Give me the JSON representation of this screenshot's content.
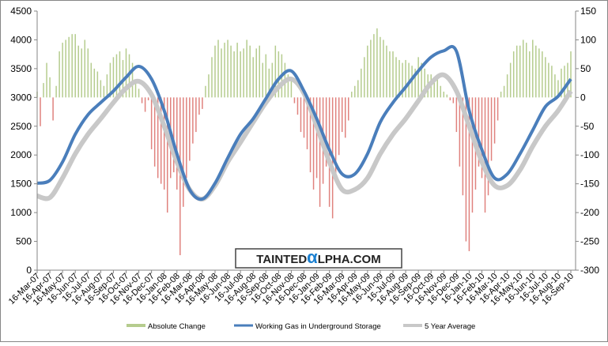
{
  "chart_data": {
    "type": "bar+line",
    "title": "",
    "categories": [
      "16-Mar-07",
      "16-Apr-07",
      "16-May-07",
      "16-Jun-07",
      "16-Jul-07",
      "16-Aug-07",
      "16-Sep-07",
      "16-Oct-07",
      "16-Nov-07",
      "16-Dec-07",
      "16-Jan-08",
      "16-Feb-08",
      "16-Mar-08",
      "16-Apr-08",
      "16-May-08",
      "16-Jun-08",
      "16-Jul-08",
      "16-Aug-08",
      "16-Sep-08",
      "16-Oct-08",
      "16-Nov-08",
      "16-Dec-08",
      "16-Jan-09",
      "16-Feb-09",
      "16-Mar-09",
      "16-Apr-09",
      "16-May-09",
      "16-Jun-09",
      "16-Jul-09",
      "16-Aug-09",
      "16-Sep-09",
      "16-Oct-09",
      "16-Nov-09",
      "16-Dec-09",
      "16-Jan-10",
      "16-Feb-10",
      "16-Mar-10",
      "16-Apr-10",
      "16-May-10",
      "16-Jun-10",
      "16-Jul-10",
      "16-Aug-10",
      "16-Sep-10"
    ],
    "left_axis": {
      "ylim": [
        0,
        4500
      ],
      "ticks": [
        0,
        500,
        1000,
        1500,
        2000,
        2500,
        3000,
        3500,
        4000,
        4500
      ]
    },
    "right_axis": {
      "ylim": [
        -300,
        150
      ],
      "ticks": [
        -300,
        -250,
        -200,
        -150,
        -100,
        -50,
        0,
        50,
        100,
        150
      ]
    },
    "grid": false,
    "legend_position": "bottom",
    "series": [
      {
        "name": "Absolute Change",
        "axis": "right",
        "kind": "bar",
        "color_pos": "#b5cc8e",
        "color_neg": "#e0827e",
        "values_weekly": [
          10,
          -50,
          25,
          60,
          35,
          -40,
          20,
          80,
          95,
          100,
          105,
          110,
          110,
          90,
          85,
          100,
          85,
          60,
          50,
          45,
          30,
          20,
          40,
          60,
          70,
          75,
          80,
          65,
          85,
          75,
          60,
          30,
          15,
          -10,
          -25,
          -5,
          -90,
          -120,
          -140,
          -150,
          -160,
          -200,
          -140,
          -130,
          -160,
          -274,
          -190,
          -140,
          -110,
          -80,
          -60,
          -30,
          -20,
          20,
          40,
          70,
          90,
          100,
          85,
          95,
          100,
          90,
          80,
          95,
          80,
          85,
          100,
          90,
          70,
          85,
          90,
          60,
          75,
          50,
          60,
          90,
          80,
          75,
          60,
          40,
          30,
          -10,
          -30,
          -60,
          -70,
          -90,
          -130,
          -160,
          -140,
          -190,
          -150,
          -120,
          -190,
          -210,
          -140,
          -100,
          -60,
          -70,
          -40,
          10,
          20,
          30,
          50,
          70,
          90,
          100,
          110,
          120,
          105,
          100,
          90,
          80,
          80,
          70,
          65,
          60,
          65,
          60,
          55,
          50,
          70,
          60,
          50,
          40,
          40,
          30,
          35,
          20,
          10,
          5,
          -5,
          -10,
          -60,
          -120,
          -170,
          -250,
          -267,
          -200,
          -160,
          -120,
          -140,
          -200,
          -170,
          -110,
          -80,
          -40,
          10,
          20,
          40,
          60,
          80,
          90,
          90,
          100,
          95,
          80,
          100,
          90,
          85,
          80,
          70,
          60,
          55,
          40,
          30,
          50,
          55,
          60,
          80
        ]
      },
      {
        "name": "Working Gas in Underground Storage",
        "axis": "left",
        "kind": "line",
        "color": "#4a7ebb",
        "values_monthly": [
          1510,
          1560,
          1880,
          2360,
          2700,
          2910,
          3110,
          3350,
          3540,
          3320,
          2770,
          2020,
          1400,
          1235,
          1510,
          1950,
          2360,
          2630,
          2980,
          3320,
          3460,
          3110,
          2630,
          2090,
          1670,
          1670,
          2020,
          2570,
          2910,
          3180,
          3460,
          3700,
          3810,
          3800,
          2770,
          2090,
          1600,
          1670,
          2020,
          2430,
          2840,
          3020,
          3320
        ]
      },
      {
        "name": "5 Year Average",
        "axis": "left",
        "kind": "line",
        "color": "#c8c8c8",
        "values_monthly": [
          1290,
          1260,
          1600,
          2020,
          2360,
          2630,
          2910,
          3160,
          3280,
          3050,
          2500,
          1880,
          1400,
          1235,
          1470,
          1880,
          2220,
          2570,
          2910,
          3180,
          3320,
          3070,
          2500,
          1880,
          1400,
          1400,
          1600,
          2020,
          2360,
          2630,
          2940,
          3250,
          3390,
          3110,
          2500,
          1880,
          1470,
          1470,
          1740,
          2150,
          2500,
          2770,
          3110
        ]
      }
    ]
  },
  "watermark": {
    "left": "TAINTED",
    "alpha": "α",
    "right": "LPHA.COM"
  }
}
